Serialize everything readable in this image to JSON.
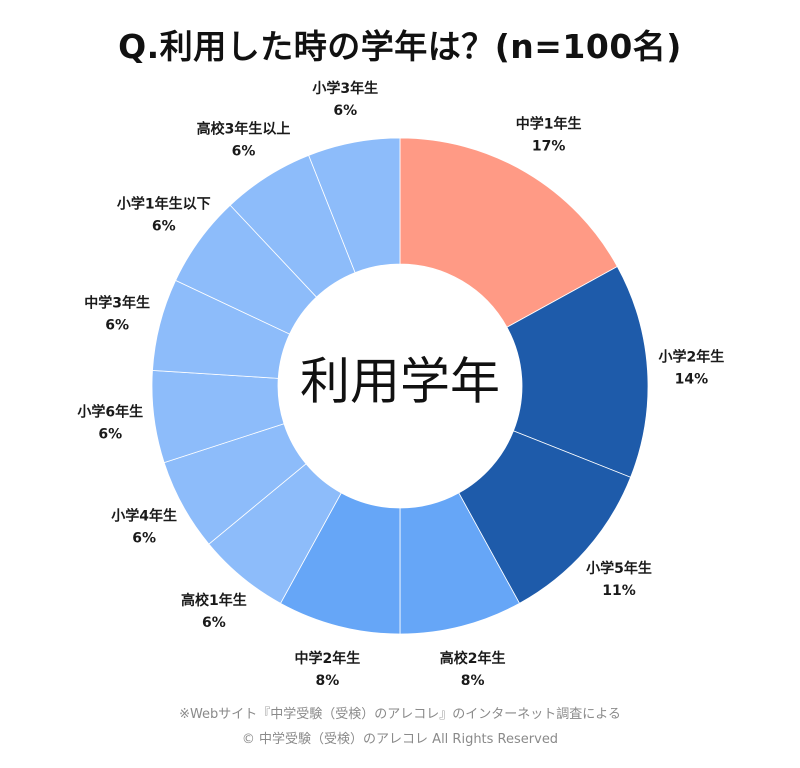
{
  "title": "Q.利用した時の学年は？(n=100名)",
  "chart_data": {
    "type": "donut",
    "title": "Q.利用した時の学年は？(n=100名)",
    "center_label": "利用学年",
    "unit": "%",
    "slices": [
      {
        "label": "中学1年生",
        "value": 17,
        "color": "#FF9A85"
      },
      {
        "label": "小学2年生",
        "value": 14,
        "color": "#1E5BAA"
      },
      {
        "label": "小学5年生",
        "value": 11,
        "color": "#1E5BAA"
      },
      {
        "label": "高校2年生",
        "value": 8,
        "color": "#66A6F7"
      },
      {
        "label": "中学2年生",
        "value": 8,
        "color": "#66A6F7"
      },
      {
        "label": "高校1年生",
        "value": 6,
        "color": "#8DBCFA"
      },
      {
        "label": "小学4年生",
        "value": 6,
        "color": "#8DBCFA"
      },
      {
        "label": "小学6年生",
        "value": 6,
        "color": "#8DBCFA"
      },
      {
        "label": "中学3年生",
        "value": 6,
        "color": "#8DBCFA"
      },
      {
        "label": "小学1年生以下",
        "value": 6,
        "color": "#8DBCFA"
      },
      {
        "label": "高校3年生以上",
        "value": 6,
        "color": "#8DBCFA"
      },
      {
        "label": "小学3年生",
        "value": 6,
        "color": "#8DBCFA"
      }
    ]
  },
  "footer": {
    "source": "※Webサイト『中学受験（受検）のアレコレ』のインターネット調査による",
    "copyright": "© 中学受験（受検）のアレコレ All Rights Reserved"
  }
}
